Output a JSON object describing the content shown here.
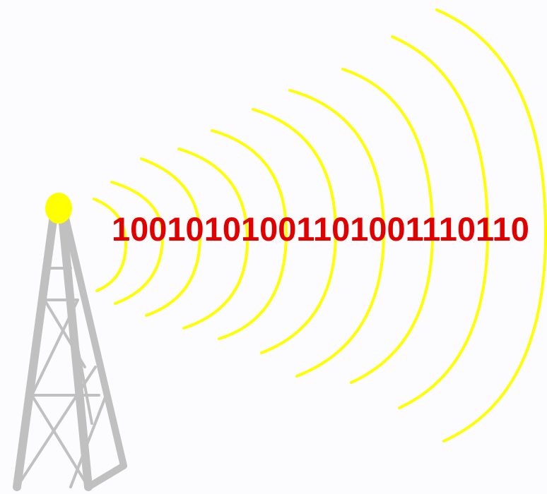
{
  "binary_text": "10010101001101001110110"
}
